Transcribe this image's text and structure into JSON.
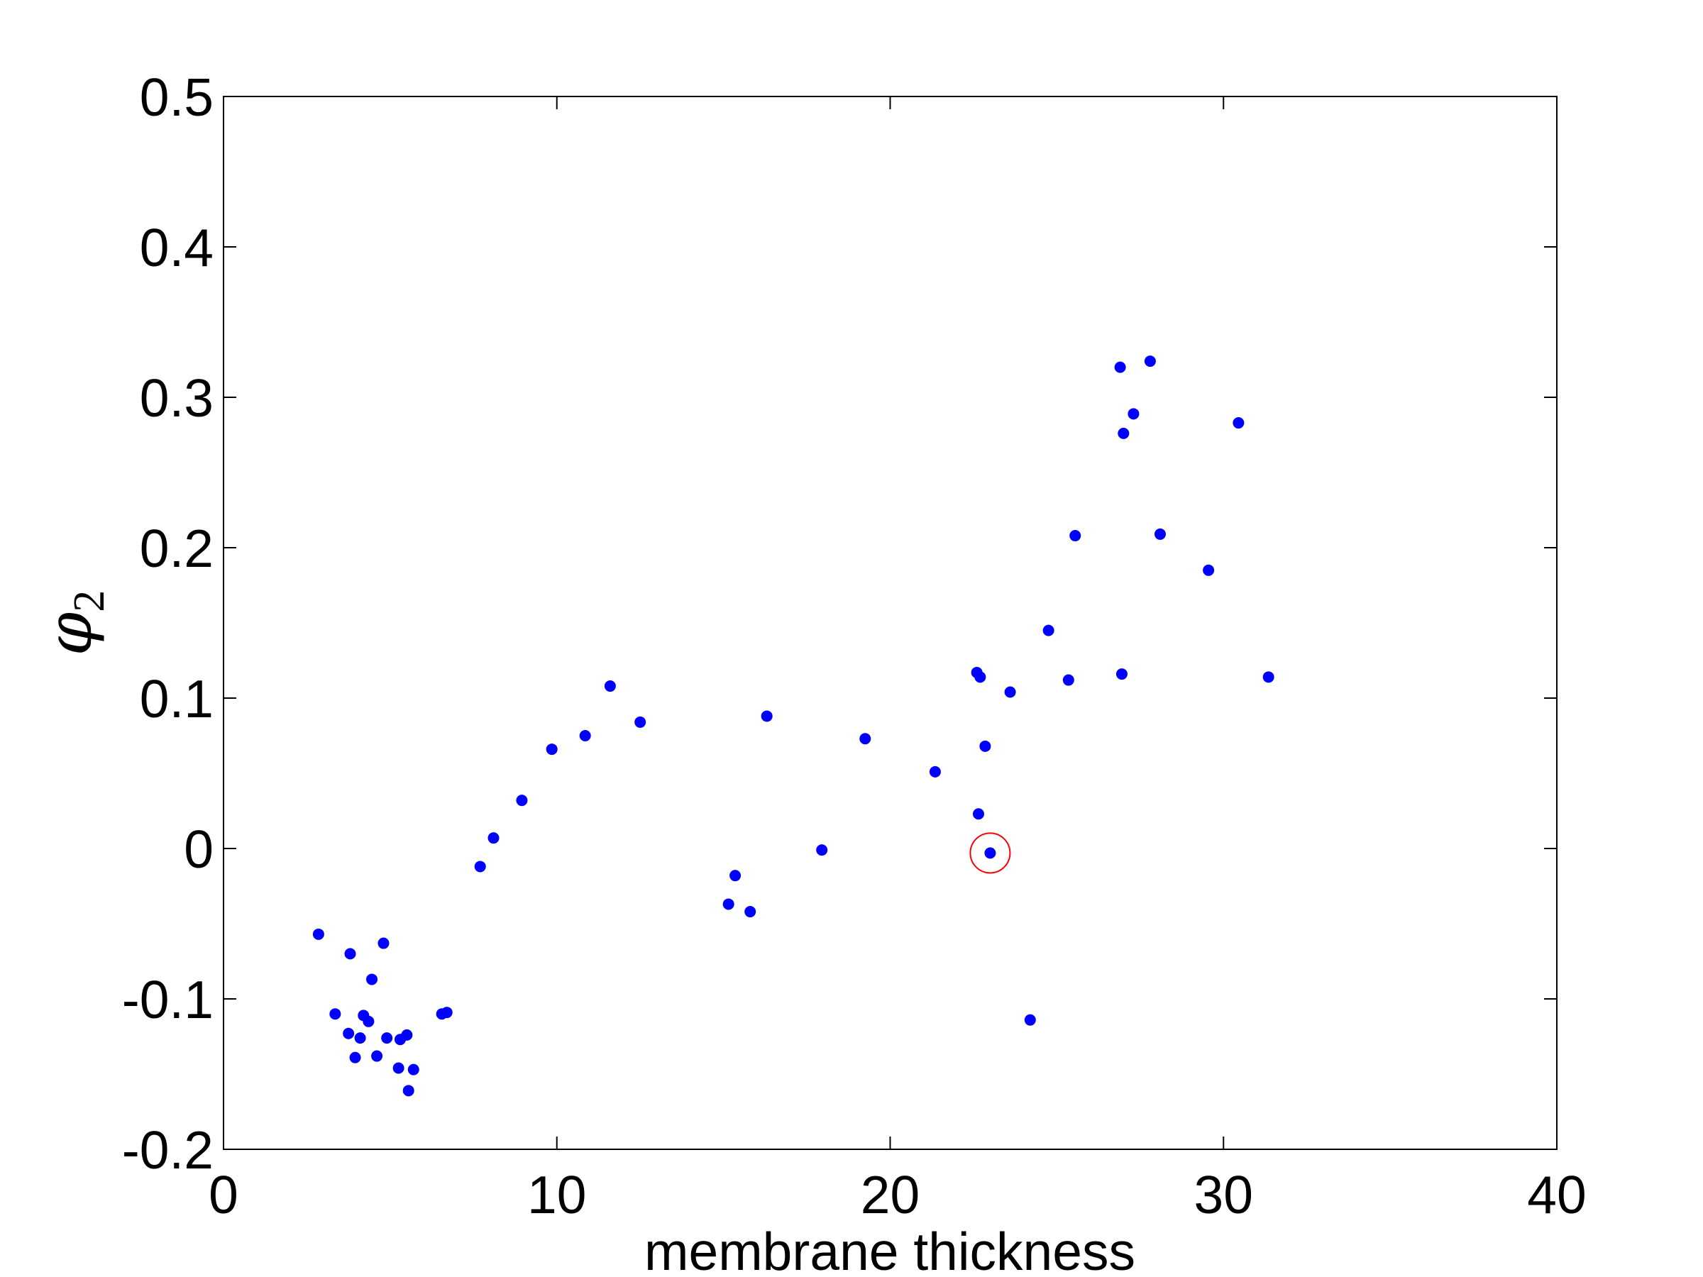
{
  "chart_data": {
    "type": "scatter",
    "title": "",
    "xlabel": "membrane thickness",
    "ylabel": {
      "symbol": "φ",
      "subscript": "2"
    },
    "xlim": [
      0,
      40
    ],
    "ylim": [
      -0.2,
      0.5
    ],
    "xticks": [
      0,
      10,
      20,
      30,
      40
    ],
    "yticks": [
      -0.2,
      -0.1,
      0,
      0.1,
      0.2,
      0.3,
      0.4,
      0.5
    ],
    "xtick_labels": [
      "0",
      "10",
      "20",
      "30",
      "40"
    ],
    "ytick_labels": [
      "-0.2",
      "-0.1",
      "0",
      "0.1",
      "0.2",
      "0.3",
      "0.4",
      "0.5"
    ],
    "grid": false,
    "marker_color": "#0000ff",
    "highlight_color": "#ff0000",
    "series": [
      {
        "points": [
          [
            2.85,
            -0.057
          ],
          [
            3.35,
            -0.11
          ],
          [
            3.75,
            -0.123
          ],
          [
            3.8,
            -0.07
          ],
          [
            3.95,
            -0.139
          ],
          [
            4.1,
            -0.126
          ],
          [
            4.2,
            -0.111
          ],
          [
            4.35,
            -0.115
          ],
          [
            4.45,
            -0.087
          ],
          [
            4.6,
            -0.138
          ],
          [
            4.8,
            -0.063
          ],
          [
            4.9,
            -0.126
          ],
          [
            5.25,
            -0.146
          ],
          [
            5.3,
            -0.127
          ],
          [
            5.5,
            -0.124
          ],
          [
            5.55,
            -0.161
          ],
          [
            5.7,
            -0.147
          ],
          [
            6.55,
            -0.11
          ],
          [
            6.7,
            -0.109
          ],
          [
            7.7,
            -0.012
          ],
          [
            8.1,
            0.007
          ],
          [
            8.95,
            0.032
          ],
          [
            9.85,
            0.066
          ],
          [
            10.85,
            0.075
          ],
          [
            11.6,
            0.108
          ],
          [
            12.5,
            0.084
          ],
          [
            15.15,
            -0.037
          ],
          [
            15.35,
            -0.018
          ],
          [
            15.8,
            -0.042
          ],
          [
            16.3,
            0.088
          ],
          [
            17.95,
            -0.001
          ],
          [
            19.25,
            0.073
          ],
          [
            21.35,
            0.051
          ],
          [
            22.6,
            0.117
          ],
          [
            22.7,
            0.114
          ],
          [
            22.65,
            0.023
          ],
          [
            22.85,
            0.068
          ],
          [
            23.0,
            -0.003
          ],
          [
            23.6,
            0.104
          ],
          [
            24.2,
            -0.114
          ],
          [
            24.75,
            0.145
          ],
          [
            25.35,
            0.112
          ],
          [
            25.55,
            0.208
          ],
          [
            26.9,
            0.32
          ],
          [
            26.95,
            0.116
          ],
          [
            27.0,
            0.276
          ],
          [
            27.3,
            0.289
          ],
          [
            27.8,
            0.324
          ],
          [
            28.1,
            0.209
          ],
          [
            29.55,
            0.185
          ],
          [
            30.45,
            0.283
          ],
          [
            31.35,
            0.114
          ]
        ]
      }
    ],
    "annotations": [
      {
        "type": "circle",
        "x": 23.0,
        "y": -0.003
      }
    ]
  }
}
